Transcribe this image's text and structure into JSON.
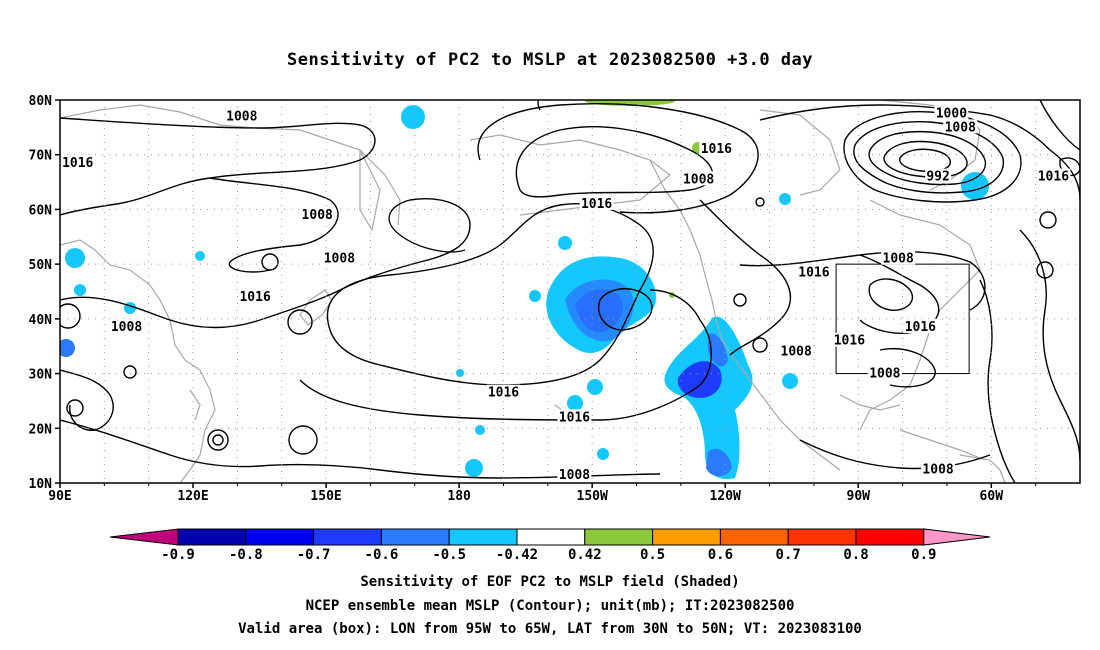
{
  "title": "Sensitivity of PC2 to MSLP at 2023082500 +3.0 day",
  "map": {
    "lat_ticks": [
      "80N",
      "70N",
      "60N",
      "50N",
      "40N",
      "30N",
      "20N",
      "10N"
    ],
    "lon_ticks": [
      "90E",
      "120E",
      "150E",
      "180",
      "150W",
      "120W",
      "90W",
      "60W"
    ],
    "lon_range_deg_east": [
      90,
      320
    ],
    "lat_range": [
      10,
      80
    ],
    "gridlines": "dotted",
    "contour_color": "#000000",
    "coastline_color": "#a8a8a8",
    "contour_labels": [
      {
        "text": "1008",
        "lon": 131,
        "lat": 77
      },
      {
        "text": "1016",
        "lon": 94,
        "lat": 68.5
      },
      {
        "text": "1008",
        "lon": 148,
        "lat": 59
      },
      {
        "text": "1008",
        "lon": 153,
        "lat": 51
      },
      {
        "text": "1016",
        "lon": 134,
        "lat": 44
      },
      {
        "text": "1008",
        "lon": 105,
        "lat": 38.5
      },
      {
        "text": "1016",
        "lon": 190,
        "lat": 26.5
      },
      {
        "text": "1016",
        "lon": 206,
        "lat": 22
      },
      {
        "text": "1008",
        "lon": 234,
        "lat": 65.5
      },
      {
        "text": "1016",
        "lon": 238,
        "lat": 71
      },
      {
        "text": "1016",
        "lon": 211,
        "lat": 61
      },
      {
        "text": "1016",
        "lon": 260,
        "lat": 48.5
      },
      {
        "text": "1016",
        "lon": 268,
        "lat": 36
      },
      {
        "text": "1008",
        "lon": 256,
        "lat": 34
      },
      {
        "text": "1008",
        "lon": 276,
        "lat": 30
      },
      {
        "text": "1008",
        "lon": 206,
        "lat": 11.5
      },
      {
        "text": "1008",
        "lon": 288,
        "lat": 12.5
      },
      {
        "text": "1008",
        "lon": 293,
        "lat": 75
      },
      {
        "text": "1000",
        "lon": 291,
        "lat": 77.5
      },
      {
        "text": "992",
        "lon": 288,
        "lat": 66
      },
      {
        "text": "1016",
        "lon": 314,
        "lat": 66
      },
      {
        "text": "1008",
        "lon": 279,
        "lat": 51
      },
      {
        "text": "1016",
        "lon": 284,
        "lat": 38.5
      }
    ],
    "valid_box": {
      "lon_w": 265,
      "lon_e": 295,
      "lat_s": 30,
      "lat_n": 50
    }
  },
  "colorbar": {
    "labels": [
      "-0.9",
      "-0.8",
      "-0.7",
      "-0.6",
      "-0.5",
      "-0.42",
      "0.42",
      "0.5",
      "0.6",
      "0.7",
      "0.8",
      "0.9"
    ],
    "colors": [
      "#0000b0",
      "#0000f0",
      "#1e3cff",
      "#2b7bff",
      "#14c8ff",
      "#ffffff",
      "#8cc83c",
      "#ff9d00",
      "#ff6400",
      "#ff3200",
      "#ff0000"
    ],
    "end_low_color": "#c0007a",
    "end_high_color": "#ff98c8"
  },
  "captions": [
    "Sensitivity of EOF PC2 to MSLP field (Shaded)",
    "NCEP ensemble mean MSLP (Contour); unit(mb); IT:2023082500",
    "Valid area (box): LON from 95W to 65W, LAT from 30N to 50N; VT: 2023083100"
  ]
}
